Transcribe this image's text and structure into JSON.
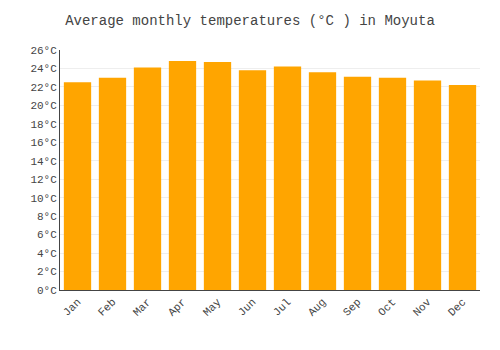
{
  "chart_data": {
    "type": "bar",
    "title": "Average monthly temperatures (°C ) in Moyuta",
    "categories": [
      "Jan",
      "Feb",
      "Mar",
      "Apr",
      "May",
      "Jun",
      "Jul",
      "Aug",
      "Sep",
      "Oct",
      "Nov",
      "Dec"
    ],
    "values": [
      22.5,
      23.0,
      24.1,
      24.8,
      24.7,
      23.8,
      24.2,
      23.6,
      23.1,
      23.0,
      22.7,
      22.2
    ],
    "color": "#FFA500",
    "ylim": [
      0,
      26
    ],
    "yticks": [
      {
        "value": 0,
        "label": "0°C"
      },
      {
        "value": 2,
        "label": "2°C"
      },
      {
        "value": 4,
        "label": "4°C"
      },
      {
        "value": 6,
        "label": "6°C"
      },
      {
        "value": 8,
        "label": "8°C"
      },
      {
        "value": 10,
        "label": "10°C"
      },
      {
        "value": 12,
        "label": "12°C"
      },
      {
        "value": 14,
        "label": "14°C"
      },
      {
        "value": 16,
        "label": "16°C"
      },
      {
        "value": 18,
        "label": "18°C"
      },
      {
        "value": 20,
        "label": "20°C"
      },
      {
        "value": 22,
        "label": "22°C"
      },
      {
        "value": 24,
        "label": "24°C"
      },
      {
        "value": 26,
        "label": "26°C"
      }
    ],
    "grid": true
  }
}
